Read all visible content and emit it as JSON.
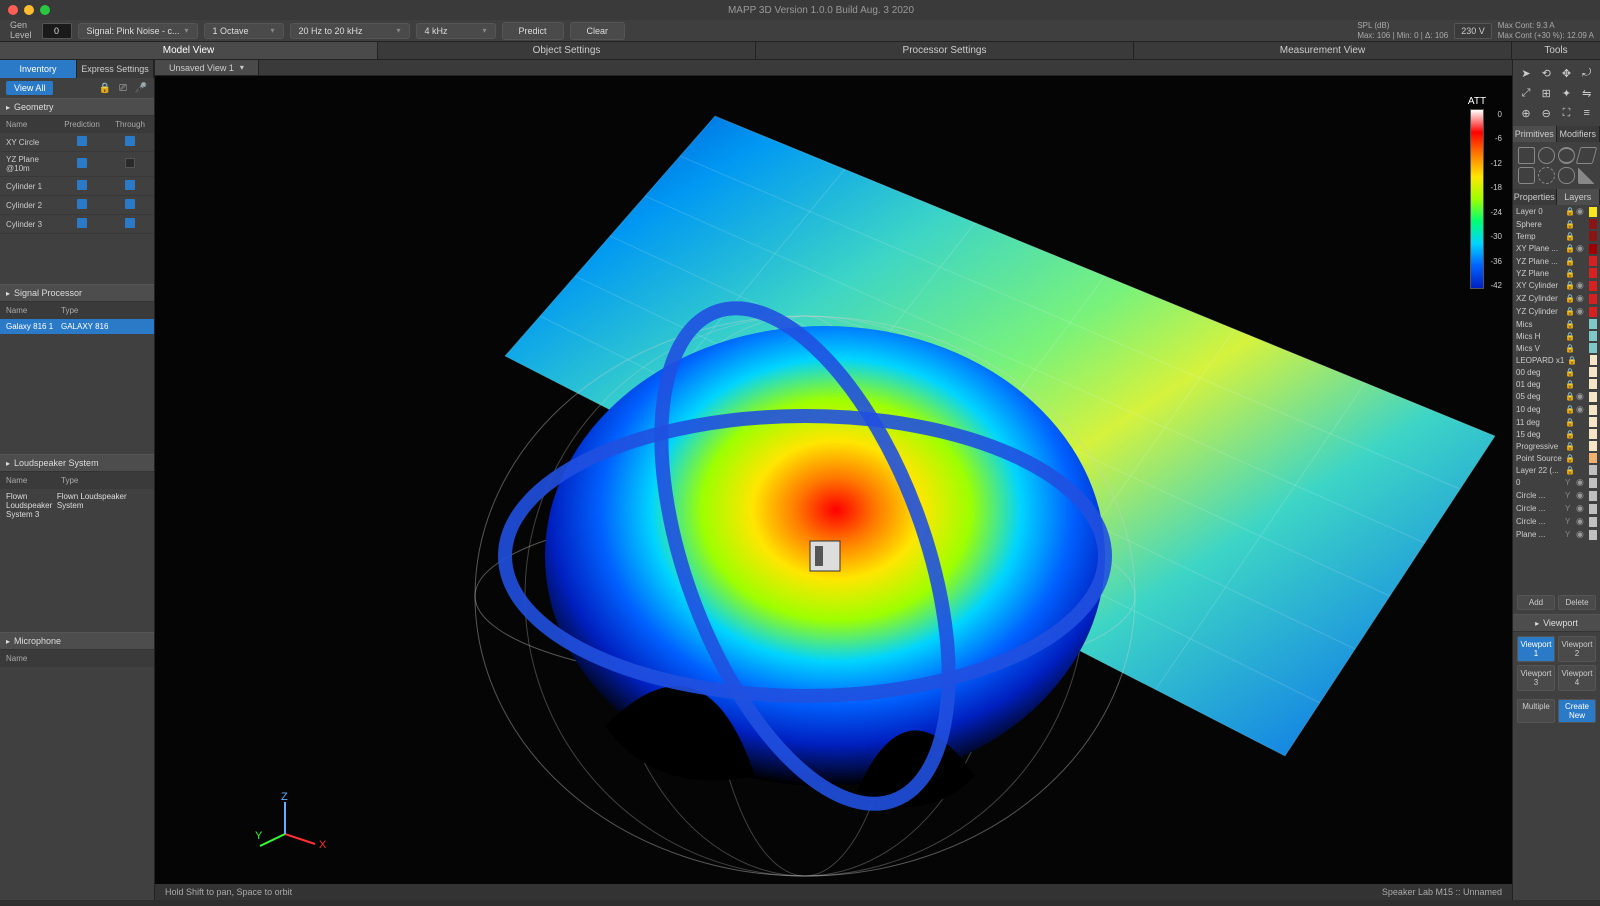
{
  "colors": {
    "bg": "#2e2e2e",
    "panel": "#404040",
    "dark": "#1a1a1a",
    "accent": "#2a7ac8",
    "traffic_red": "#ff5f57",
    "traffic_yellow": "#febc2e",
    "traffic_green": "#28c840"
  },
  "title": "MAPP 3D Version 1.0.0 Build  Aug. 3 2020",
  "toolbar": {
    "gen_label": "Gen\nLevel",
    "gen_value": "0",
    "signal": "Signal: Pink Noise - c...",
    "octave": "1 Octave",
    "freq_range": "20 Hz to 20 kHz",
    "freq": "4 kHz",
    "predict": "Predict",
    "clear": "Clear",
    "spl_label": "SPL (dB)",
    "spl_stats": "Max: 106 | Min: 0 | Δ: 106",
    "voltage": "230 V",
    "maxcont1": "Max Cont: 9.3   A",
    "maxcont2": "Max Cont (+30 %): 12.09  A"
  },
  "view_tabs": [
    "Model View",
    "Object Settings",
    "Processor Settings",
    "Measurement View"
  ],
  "active_view_tab": 0,
  "tools_label": "Tools",
  "left": {
    "tabs": [
      "Inventory",
      "Express Settings"
    ],
    "active_tab": 0,
    "view_all": "View All",
    "geometry": {
      "title": "Geometry",
      "cols": [
        "Name",
        "Prediction",
        "Through"
      ],
      "rows": [
        {
          "name": "XY Circle",
          "pred": true,
          "thr": true
        },
        {
          "name": "YZ Plane @10m",
          "pred": true,
          "thr": false
        },
        {
          "name": "Cylinder 1",
          "pred": true,
          "thr": true
        },
        {
          "name": "Cylinder 2",
          "pred": true,
          "thr": true
        },
        {
          "name": "Cylinder 3",
          "pred": true,
          "thr": true
        }
      ]
    },
    "signal_processor": {
      "title": "Signal Processor",
      "cols": [
        "Name",
        "Type"
      ],
      "rows": [
        {
          "name": "Galaxy 816 1",
          "type": "GALAXY 816"
        }
      ]
    },
    "loudspeaker": {
      "title": "Loudspeaker System",
      "cols": [
        "Name",
        "Type"
      ],
      "rows": [
        {
          "name": "Flown Loudspeaker System 3",
          "type": "Flown Loudspeaker System"
        }
      ]
    },
    "microphone": {
      "title": "Microphone",
      "cols": [
        "Name"
      ]
    }
  },
  "center": {
    "tab": "Unsaved View 1",
    "hint": "Hold Shift to pan, Space to orbit",
    "project": "Speaker Lab M15 :: Unnamed"
  },
  "colorbar": {
    "title": "ATT",
    "ticks": [
      "0",
      "-6",
      "-12",
      "-18",
      "-24",
      "-30",
      "-36",
      "-42"
    ],
    "stops": [
      "#ffffff",
      "#ff0000",
      "#ff7b00",
      "#ffe600",
      "#9dff00",
      "#00ff73",
      "#00d4ff",
      "#0062ff",
      "#0020c0"
    ]
  },
  "axis_gizmo": {
    "x": "X",
    "y": "Y",
    "z": "Z",
    "x_color": "#ff3030",
    "y_color": "#30ff30",
    "z_color": "#60b0ff"
  },
  "viz": {
    "plane_gradient": [
      "#0020c0",
      "#0062ff",
      "#00d4ff",
      "#00ff73",
      "#9dff00",
      "#ffe600",
      "#00d4ff",
      "#0062ff"
    ],
    "sphere_gradient": [
      "#ff0000",
      "#ff7b00",
      "#ffe600",
      "#9dff00",
      "#00d4ff",
      "#0062ff",
      "#0020c0",
      "#000000"
    ],
    "ring_color": "#2050e0",
    "wire_color": "#d0d0d0"
  },
  "right": {
    "prim_tabs": [
      "Primitives",
      "Modifiers"
    ],
    "prop_tabs": [
      "Properties",
      "Layers"
    ],
    "layers": [
      {
        "name": "Layer 0",
        "lock": true,
        "eye": true,
        "color": "#f8e71c"
      },
      {
        "name": "Sphere",
        "lock": true,
        "eye": false,
        "color": "#8b1515"
      },
      {
        "name": "Temp",
        "lock": true,
        "eye": false,
        "color": "#8b1515"
      },
      {
        "name": "XY Plane ...",
        "lock": true,
        "eye": true,
        "color": "#a00000"
      },
      {
        "name": "YZ Plane ...",
        "lock": true,
        "eye": false,
        "color": "#d82020"
      },
      {
        "name": "YZ Plane",
        "lock": true,
        "eye": false,
        "color": "#d82020"
      },
      {
        "name": "XY Cylinder",
        "lock": true,
        "eye": true,
        "color": "#d82020"
      },
      {
        "name": "XZ Cylinder",
        "lock": true,
        "eye": true,
        "color": "#d82020"
      },
      {
        "name": "YZ Cylinder",
        "lock": true,
        "eye": true,
        "color": "#d82020"
      },
      {
        "name": "Mics",
        "lock": true,
        "eye": false,
        "color": "#7ec8c8"
      },
      {
        "name": "Mics H",
        "lock": true,
        "eye": false,
        "color": "#7ec8c8"
      },
      {
        "name": "Mics V",
        "lock": true,
        "eye": false,
        "color": "#7ec8c8"
      },
      {
        "name": "LEOPARD x1",
        "lock": true,
        "eye": false,
        "color": "#f5e6c8"
      },
      {
        "name": "00 deg",
        "lock": true,
        "eye": false,
        "color": "#f5e6c8"
      },
      {
        "name": "01 deg",
        "lock": true,
        "eye": false,
        "color": "#f5e6c8"
      },
      {
        "name": "05 deg",
        "lock": true,
        "eye": true,
        "color": "#f5e6c8"
      },
      {
        "name": "10 deg",
        "lock": true,
        "eye": true,
        "color": "#f5e6c8"
      },
      {
        "name": "11 deg",
        "lock": true,
        "eye": false,
        "color": "#f5e6c8"
      },
      {
        "name": "15 deg",
        "lock": true,
        "eye": false,
        "color": "#f5e6c8"
      },
      {
        "name": "Progressive",
        "lock": true,
        "eye": false,
        "color": "#f5e6c8"
      },
      {
        "name": "Point Source",
        "lock": true,
        "eye": false,
        "color": "#f0b070"
      },
      {
        "name": "Layer 22 (...",
        "lock": true,
        "eye": false,
        "color": "#c0c0c0"
      },
      {
        "name": "  0",
        "lock": false,
        "eye": true,
        "color": "#c0c0c0",
        "y": true
      },
      {
        "name": "  Circle ...",
        "lock": false,
        "eye": true,
        "color": "#c0c0c0",
        "y": true
      },
      {
        "name": "  Circle ...",
        "lock": false,
        "eye": true,
        "color": "#c0c0c0",
        "y": true
      },
      {
        "name": "  Circle ...",
        "lock": false,
        "eye": true,
        "color": "#c0c0c0",
        "y": true
      },
      {
        "name": "  Plane ...",
        "lock": false,
        "eye": true,
        "color": "#c0c0c0",
        "y": true
      }
    ],
    "add": "Add",
    "delete": "Delete",
    "viewport": {
      "title": "Viewport",
      "btns": [
        "Viewport 1",
        "Viewport 2",
        "Viewport 3",
        "Viewport 4"
      ],
      "multiple": "Multiple",
      "create": "Create New"
    }
  }
}
